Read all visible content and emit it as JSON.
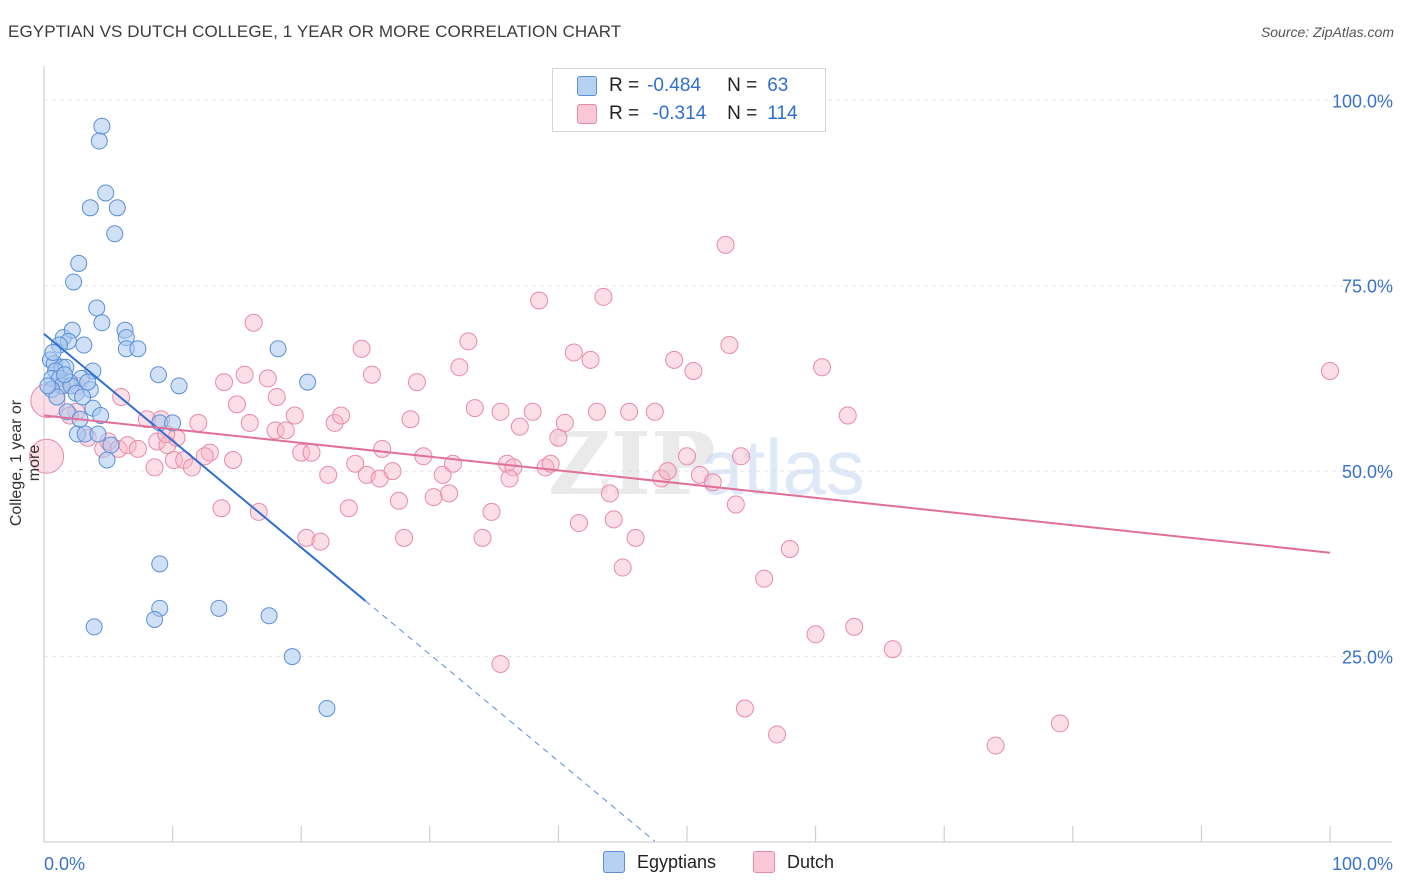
{
  "header": {
    "title": "EGYPTIAN VS DUTCH COLLEGE, 1 YEAR OR MORE CORRELATION CHART",
    "source": "Source: ZipAtlas.com"
  },
  "watermark": {
    "text_zip": "ZIP",
    "text_atlas": "atlas"
  },
  "legend": {
    "rows": [
      {
        "r_label": "R = ",
        "r_value": "-0.484",
        "n_label": "N = ",
        "n_value": "63",
        "color": "#a9c8f0"
      },
      {
        "r_label": "R = ",
        "r_value": " -0.314",
        "n_label": "N = ",
        "n_value": "114",
        "color": "#f6b6c8"
      }
    ]
  },
  "bottom_legend": {
    "egyptians": "Egyptians",
    "dutch": "Dutch"
  },
  "chart_data": {
    "type": "scatter",
    "title": "EGYPTIAN VS DUTCH COLLEGE, 1 YEAR OR MORE CORRELATION CHART",
    "ylabel": "College, 1 year or more",
    "xlabel": "",
    "x_tick_labels": [
      "0.0%",
      "100.0%"
    ],
    "y_tick_labels": [
      "25.0%",
      "50.0%",
      "75.0%",
      "100.0%"
    ],
    "xlim": [
      0,
      100
    ],
    "ylim": [
      0,
      103
    ],
    "grid": true,
    "legend_position": "top-center",
    "colors": {
      "egyptians_fill": "#a9c8f0",
      "egyptians_stroke": "#5b8fd6",
      "egyptians_line": "#2f6fd0",
      "dutch_fill": "#f6b6c8",
      "dutch_stroke": "#e98aa8",
      "dutch_line": "#e07099",
      "tick_label": "#3a72c9",
      "grid": "#e6e6e6"
    },
    "series": [
      {
        "name": "Egyptians",
        "trend": {
          "x0": 0,
          "y0": 68.5,
          "x1": 25,
          "y1": 32.5,
          "dashed_to_x": 47.5
        },
        "points": [
          [
            4.5,
            96.5
          ],
          [
            4.3,
            94.5
          ],
          [
            4.8,
            87.5
          ],
          [
            3.6,
            85.5
          ],
          [
            5.7,
            85.5
          ],
          [
            5.5,
            82.0
          ],
          [
            2.7,
            78.0
          ],
          [
            2.3,
            75.5
          ],
          [
            4.1,
            72.0
          ],
          [
            4.5,
            70.0
          ],
          [
            6.3,
            69.0
          ],
          [
            6.4,
            68.0
          ],
          [
            1.5,
            68.0
          ],
          [
            2.2,
            69.0
          ],
          [
            1.9,
            67.5
          ],
          [
            3.1,
            67.0
          ],
          [
            6.4,
            66.5
          ],
          [
            7.3,
            66.5
          ],
          [
            18.2,
            66.5
          ],
          [
            1.2,
            67.0
          ],
          [
            0.5,
            65.0
          ],
          [
            0.8,
            64.5
          ],
          [
            1.4,
            64.0
          ],
          [
            1.7,
            64.0
          ],
          [
            0.9,
            63.5
          ],
          [
            3.8,
            63.5
          ],
          [
            2.9,
            62.5
          ],
          [
            0.6,
            62.5
          ],
          [
            1.2,
            62.5
          ],
          [
            2.0,
            62.0
          ],
          [
            8.9,
            63.0
          ],
          [
            1.4,
            61.5
          ],
          [
            2.1,
            61.5
          ],
          [
            10.5,
            61.5
          ],
          [
            20.5,
            62.0
          ],
          [
            3.6,
            61.0
          ],
          [
            3.8,
            58.5
          ],
          [
            4.4,
            57.5
          ],
          [
            1.8,
            58.0
          ],
          [
            9.0,
            56.5
          ],
          [
            10.0,
            56.5
          ],
          [
            2.6,
            55.0
          ],
          [
            3.2,
            55.0
          ],
          [
            4.2,
            55.0
          ],
          [
            5.2,
            53.5
          ],
          [
            4.9,
            51.5
          ],
          [
            9.0,
            37.5
          ],
          [
            9.0,
            31.5
          ],
          [
            8.6,
            30.0
          ],
          [
            13.6,
            31.5
          ],
          [
            17.5,
            30.5
          ],
          [
            3.9,
            29.0
          ],
          [
            19.3,
            25.0
          ],
          [
            22.0,
            18.0
          ],
          [
            0.6,
            61.0
          ],
          [
            1.0,
            60.0
          ],
          [
            2.5,
            60.5
          ],
          [
            3.0,
            60.0
          ],
          [
            0.7,
            66.0
          ],
          [
            2.8,
            57.0
          ],
          [
            1.6,
            63.0
          ],
          [
            0.3,
            61.5
          ],
          [
            3.4,
            62.0
          ]
        ]
      },
      {
        "name": "Dutch",
        "trend": {
          "x0": 0,
          "y0": 57.5,
          "x1": 100,
          "y1": 39.0
        },
        "points": [
          [
            0.2,
            52.0
          ],
          [
            0.3,
            59.5
          ],
          [
            1.4,
            61.5
          ],
          [
            2.5,
            58.0
          ],
          [
            2.6,
            61.5
          ],
          [
            3.4,
            54.5
          ],
          [
            4.6,
            53.0
          ],
          [
            5.0,
            54.0
          ],
          [
            5.8,
            53.0
          ],
          [
            6.5,
            53.5
          ],
          [
            7.3,
            53.0
          ],
          [
            8.6,
            50.5
          ],
          [
            8.8,
            54.0
          ],
          [
            9.1,
            57.0
          ],
          [
            9.6,
            53.5
          ],
          [
            10.1,
            51.5
          ],
          [
            10.3,
            54.5
          ],
          [
            10.9,
            51.5
          ],
          [
            11.5,
            50.5
          ],
          [
            12.0,
            56.5
          ],
          [
            12.9,
            52.5
          ],
          [
            13.8,
            45.0
          ],
          [
            14.0,
            62.0
          ],
          [
            14.7,
            51.5
          ],
          [
            15.6,
            63.0
          ],
          [
            16.0,
            56.5
          ],
          [
            16.3,
            70.0
          ],
          [
            16.7,
            44.5
          ],
          [
            17.4,
            62.5
          ],
          [
            18.0,
            55.5
          ],
          [
            18.1,
            60.0
          ],
          [
            18.8,
            55.5
          ],
          [
            19.5,
            57.5
          ],
          [
            20.0,
            52.5
          ],
          [
            20.4,
            41.0
          ],
          [
            20.8,
            52.5
          ],
          [
            21.5,
            40.5
          ],
          [
            22.1,
            49.5
          ],
          [
            22.6,
            56.5
          ],
          [
            23.1,
            57.5
          ],
          [
            23.7,
            45.0
          ],
          [
            24.2,
            51.0
          ],
          [
            24.7,
            66.5
          ],
          [
            25.1,
            49.5
          ],
          [
            25.5,
            63.0
          ],
          [
            26.1,
            49.0
          ],
          [
            26.3,
            53.0
          ],
          [
            27.1,
            50.0
          ],
          [
            27.6,
            46.0
          ],
          [
            28.0,
            41.0
          ],
          [
            28.5,
            57.0
          ],
          [
            29.0,
            62.0
          ],
          [
            29.5,
            52.0
          ],
          [
            30.3,
            46.5
          ],
          [
            31.0,
            49.5
          ],
          [
            31.5,
            47.0
          ],
          [
            31.8,
            51.0
          ],
          [
            32.3,
            64.0
          ],
          [
            33.0,
            67.5
          ],
          [
            33.5,
            58.5
          ],
          [
            34.1,
            41.0
          ],
          [
            34.8,
            44.5
          ],
          [
            35.5,
            58.0
          ],
          [
            36.0,
            51.0
          ],
          [
            36.5,
            50.5
          ],
          [
            38.0,
            58.0
          ],
          [
            38.5,
            73.0
          ],
          [
            39.0,
            50.5
          ],
          [
            39.4,
            51.0
          ],
          [
            40.0,
            54.5
          ],
          [
            40.5,
            56.5
          ],
          [
            41.2,
            66.0
          ],
          [
            41.6,
            43.0
          ],
          [
            42.5,
            65.0
          ],
          [
            43.0,
            58.0
          ],
          [
            43.5,
            73.5
          ],
          [
            44.0,
            47.0
          ],
          [
            44.3,
            43.5
          ],
          [
            45.0,
            37.0
          ],
          [
            45.5,
            58.0
          ],
          [
            46.0,
            41.0
          ],
          [
            47.5,
            58.0
          ],
          [
            48.0,
            49.0
          ],
          [
            49.0,
            65.0
          ],
          [
            50.0,
            52.0
          ],
          [
            50.5,
            63.5
          ],
          [
            51.0,
            49.5
          ],
          [
            52.0,
            48.5
          ],
          [
            53.0,
            80.5
          ],
          [
            53.3,
            67.0
          ],
          [
            53.8,
            45.5
          ],
          [
            54.2,
            52.0
          ],
          [
            56.0,
            35.5
          ],
          [
            58.0,
            39.5
          ],
          [
            60.0,
            28.0
          ],
          [
            60.5,
            64.0
          ],
          [
            62.5,
            57.5
          ],
          [
            63.0,
            29.0
          ],
          [
            66.0,
            26.0
          ],
          [
            54.5,
            18.0
          ],
          [
            57.0,
            14.5
          ],
          [
            74.0,
            13.0
          ],
          [
            79.0,
            16.0
          ],
          [
            100.0,
            63.5
          ],
          [
            35.5,
            24.0
          ],
          [
            48.5,
            50.0
          ],
          [
            36.2,
            49.0
          ],
          [
            37.0,
            56.0
          ],
          [
            12.5,
            52.0
          ],
          [
            8.0,
            57.0
          ],
          [
            9.5,
            55.0
          ],
          [
            6.0,
            60.0
          ],
          [
            15.0,
            59.0
          ],
          [
            2.0,
            57.5
          ]
        ]
      }
    ]
  }
}
